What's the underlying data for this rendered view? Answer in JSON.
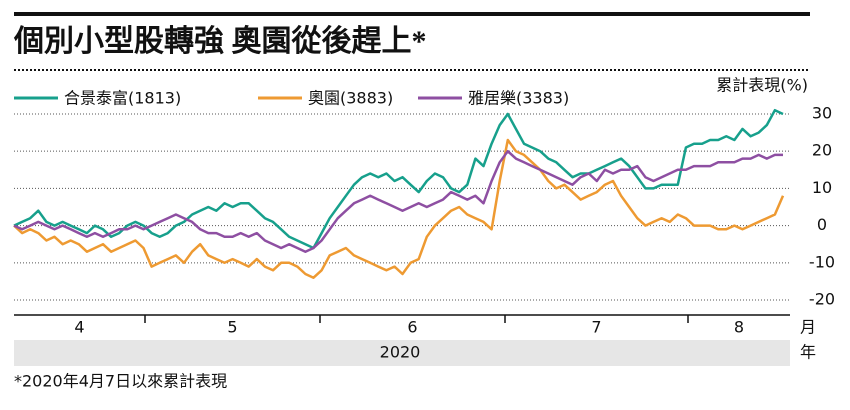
{
  "chart_data": {
    "type": "line",
    "title": "個別小型股轉強 奧園從後趕上*",
    "y_label": "累計表現(%)",
    "months": [
      "4",
      "5",
      "6",
      "7",
      "8"
    ],
    "month_unit": "月",
    "year": "2020",
    "year_unit": "年",
    "footnote": "*2020年4月7日以來累計表現",
    "ylim": [
      -22,
      33
    ],
    "yticks": [
      -20,
      -10,
      0,
      10,
      20,
      30
    ],
    "grid": true,
    "legend": "top-left",
    "series": [
      {
        "name": "合景泰富(1813)",
        "color": "#17a08c",
        "values": [
          0,
          1,
          2,
          4,
          1,
          0,
          1,
          0,
          -1,
          -2,
          0,
          -1,
          -3,
          -2,
          0,
          1,
          0,
          -2,
          -3,
          -2,
          0,
          1,
          3,
          4,
          5,
          4,
          6,
          5,
          6,
          6,
          4,
          2,
          1,
          -1,
          -3,
          -4,
          -5,
          -6,
          -2,
          2,
          5,
          8,
          11,
          13,
          14,
          13,
          14,
          12,
          13,
          11,
          9,
          12,
          14,
          13,
          10,
          9,
          11,
          18,
          16,
          22,
          27,
          30,
          26,
          22,
          21,
          20,
          18,
          17,
          15,
          13,
          14,
          14,
          15,
          16,
          17,
          18,
          16,
          13,
          10,
          10,
          11,
          11,
          11,
          21,
          22,
          22,
          23,
          23,
          24,
          23,
          26,
          24,
          25,
          27,
          31,
          30
        ]
      },
      {
        "name": "奧園(3883)",
        "color": "#ee9a32",
        "values": [
          0,
          -2,
          -1,
          -2,
          -4,
          -3,
          -5,
          -4,
          -5,
          -7,
          -6,
          -5,
          -7,
          -6,
          -5,
          -4,
          -6,
          -11,
          -10,
          -9,
          -8,
          -10,
          -7,
          -5,
          -8,
          -9,
          -10,
          -9,
          -10,
          -11,
          -9,
          -11,
          -12,
          -10,
          -10,
          -11,
          -13,
          -14,
          -12,
          -8,
          -7,
          -6,
          -8,
          -9,
          -10,
          -11,
          -12,
          -11,
          -13,
          -10,
          -9,
          -3,
          0,
          2,
          4,
          5,
          3,
          2,
          1,
          -1,
          12,
          23,
          20,
          19,
          17,
          15,
          12,
          10,
          11,
          9,
          7,
          8,
          9,
          11,
          12,
          8,
          5,
          2,
          0,
          1,
          2,
          1,
          3,
          2,
          0,
          0,
          0,
          -1,
          -1,
          0,
          -1,
          0,
          1,
          2,
          3,
          8
        ]
      },
      {
        "name": "雅居樂(3383)",
        "color": "#8e4fa2",
        "values": [
          0,
          -1,
          0,
          1,
          0,
          -1,
          0,
          -1,
          -2,
          -3,
          -2,
          -3,
          -2,
          -1,
          -1,
          0,
          -1,
          0,
          1,
          2,
          3,
          2,
          1,
          -1,
          -2,
          -2,
          -3,
          -3,
          -2,
          -3,
          -2,
          -4,
          -5,
          -6,
          -5,
          -6,
          -7,
          -6,
          -4,
          -1,
          2,
          4,
          6,
          7,
          8,
          7,
          6,
          5,
          4,
          5,
          6,
          5,
          6,
          7,
          9,
          8,
          7,
          8,
          6,
          12,
          17,
          20,
          18,
          17,
          16,
          15,
          14,
          13,
          12,
          11,
          13,
          14,
          12,
          15,
          14,
          15,
          15,
          16,
          13,
          12,
          13,
          14,
          15,
          15,
          16,
          16,
          16,
          17,
          17,
          17,
          18,
          18,
          19,
          18,
          19,
          19
        ]
      }
    ]
  }
}
